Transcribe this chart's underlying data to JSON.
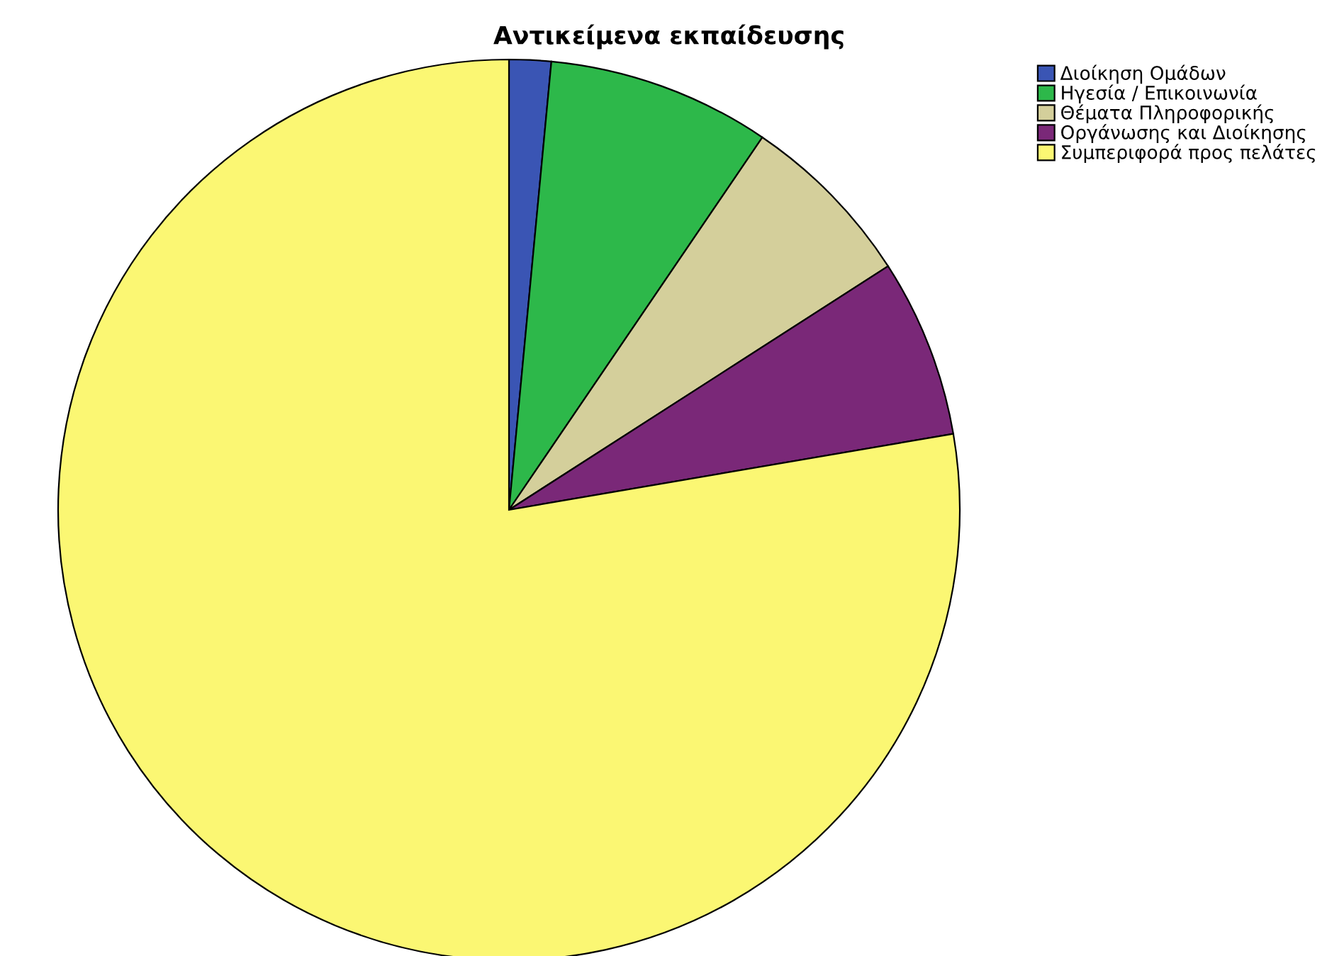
{
  "chart_data": {
    "type": "pie",
    "title": "Αντικείμενα εκπαίδευσης",
    "categories": [
      "Διοίκηση Ομάδων",
      "Ηγεσία / Επικοινωνία",
      "Θέματα Πληροφορικής",
      "Οργάνωσης και Διοίκησης",
      "Συμπεριφορά προς πελάτες"
    ],
    "values": [
      1.5,
      8,
      6.4,
      6.4,
      77.7
    ],
    "colors": [
      "#3a55b4",
      "#2db84a",
      "#d4cf9b",
      "#7a2878",
      "#fbf773"
    ],
    "legend": "top right"
  }
}
